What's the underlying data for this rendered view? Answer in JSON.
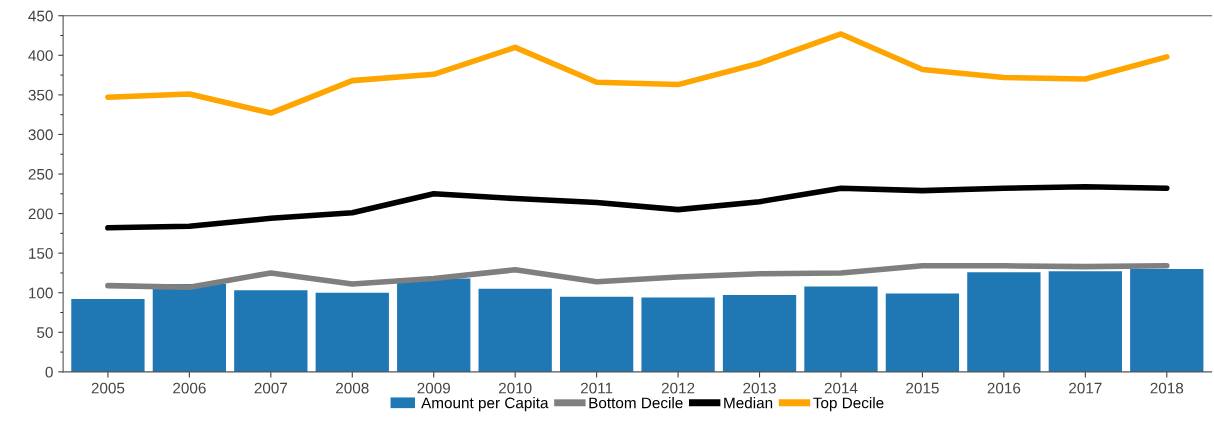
{
  "chart_data": {
    "type": "bar",
    "categories": [
      "2005",
      "2006",
      "2007",
      "2008",
      "2009",
      "2010",
      "2011",
      "2012",
      "2013",
      "2014",
      "2015",
      "2016",
      "2017",
      "2018"
    ],
    "series": [
      {
        "name": "Amount per Capita",
        "color": "#1f77b4",
        "values": [
          92,
          111,
          103,
          100,
          118,
          105,
          95,
          94,
          97,
          108,
          99,
          126,
          127,
          130
        ]
      },
      {
        "name": "Bottom Decile",
        "color": "#7f7f7f",
        "type": "line",
        "values": [
          109,
          107,
          125,
          111,
          118,
          129,
          114,
          120,
          124,
          125,
          134,
          134,
          133,
          134
        ]
      },
      {
        "name": "Median",
        "color": "#000000",
        "type": "line",
        "values": [
          182,
          184,
          194,
          201,
          225,
          219,
          214,
          205,
          215,
          232,
          229,
          232,
          234,
          232
        ]
      },
      {
        "name": "Top Decile",
        "color": "#ffa500",
        "type": "line",
        "values": [
          347,
          351,
          327,
          368,
          376,
          410,
          366,
          363,
          390,
          427,
          382,
          372,
          370,
          398
        ]
      }
    ],
    "ylim": [
      0,
      450
    ],
    "yticks": [
      0,
      50,
      100,
      150,
      200,
      250,
      300,
      350,
      400,
      450
    ],
    "grid": false,
    "legend": "bottom",
    "marker": "none",
    "line_style": "solid"
  }
}
